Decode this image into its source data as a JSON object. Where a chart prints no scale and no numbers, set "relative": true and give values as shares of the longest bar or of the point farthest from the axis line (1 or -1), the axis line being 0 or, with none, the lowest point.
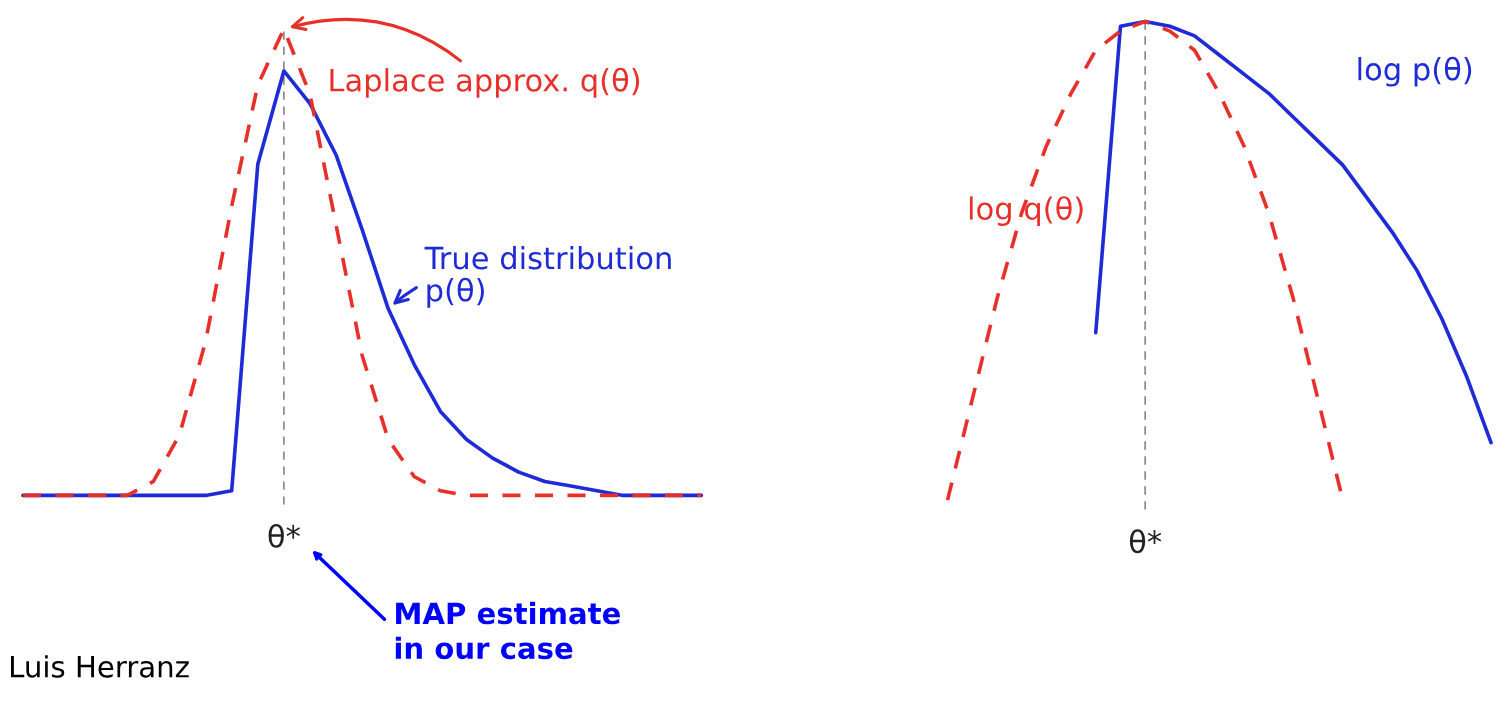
{
  "chart_data": [
    {
      "type": "line",
      "relative": true,
      "categories": [
        null,
        null,
        null,
        null,
        null,
        null,
        null,
        null,
        null,
        null,
        null,
        null,
        null,
        null,
        null,
        null,
        null,
        null,
        null,
        null,
        null,
        null,
        null,
        null,
        null,
        null,
        null
      ],
      "series": [
        {
          "name": "Laplace approx. q(θ)",
          "color": "#e8302a",
          "line_style": "dashed",
          "values": [
            0,
            0,
            0,
            0,
            0,
            0.03,
            0.13,
            0.33,
            0.62,
            0.88,
            1,
            0.86,
            0.58,
            0.3,
            0.12,
            0.04,
            0.01,
            0,
            0,
            0,
            0,
            0,
            0,
            0,
            0,
            0,
            0
          ]
        },
        {
          "name": "True distribution\np(θ)",
          "color": "#1f2bd6",
          "line_style": "solid",
          "values": [
            0,
            0,
            0,
            0,
            0,
            0,
            0,
            0,
            0.01,
            0.71,
            0.91,
            0.84,
            0.73,
            0.57,
            0.4,
            0.28,
            0.18,
            0.12,
            0.08,
            0.05,
            0.03,
            0.02,
            0.01,
            0,
            0,
            0,
            0
          ]
        }
      ],
      "ref_lines": [
        {
          "axis": "x",
          "label": "θ*",
          "color": "#888888",
          "line_style": "dashed"
        }
      ],
      "annotations": [
        "MAP estimate\nin our case",
        "Luis Herranz"
      ]
    },
    {
      "type": "line",
      "relative": true,
      "categories": [
        null,
        null,
        null,
        null,
        null,
        null,
        null,
        null,
        null,
        null,
        null,
        null,
        null,
        null,
        null,
        null,
        null,
        null,
        null,
        null,
        null,
        null,
        null
      ],
      "series": [
        {
          "name": "log q(θ)",
          "color": "#e8302a",
          "line_style": "dashed",
          "values": [
            0,
            0.21,
            0.42,
            0.6,
            0.74,
            0.85,
            0.94,
            0.98,
            1,
            0.98,
            0.94,
            0.85,
            0.74,
            0.6,
            0.42,
            0.21,
            0,
            null,
            null,
            null,
            null,
            null,
            null
          ]
        },
        {
          "name": "log p(θ)",
          "color": "#1f2bd6",
          "line_style": "solid",
          "values": [
            null,
            null,
            null,
            null,
            null,
            null,
            0.35,
            0.99,
            1,
            0.99,
            0.97,
            0.93,
            0.89,
            0.85,
            0.8,
            0.75,
            0.7,
            0.63,
            0.56,
            0.48,
            0.38,
            0.26,
            0.12
          ]
        }
      ],
      "ref_lines": [
        {
          "axis": "x",
          "label": "θ*",
          "color": "#888888",
          "line_style": "dashed"
        }
      ]
    }
  ]
}
